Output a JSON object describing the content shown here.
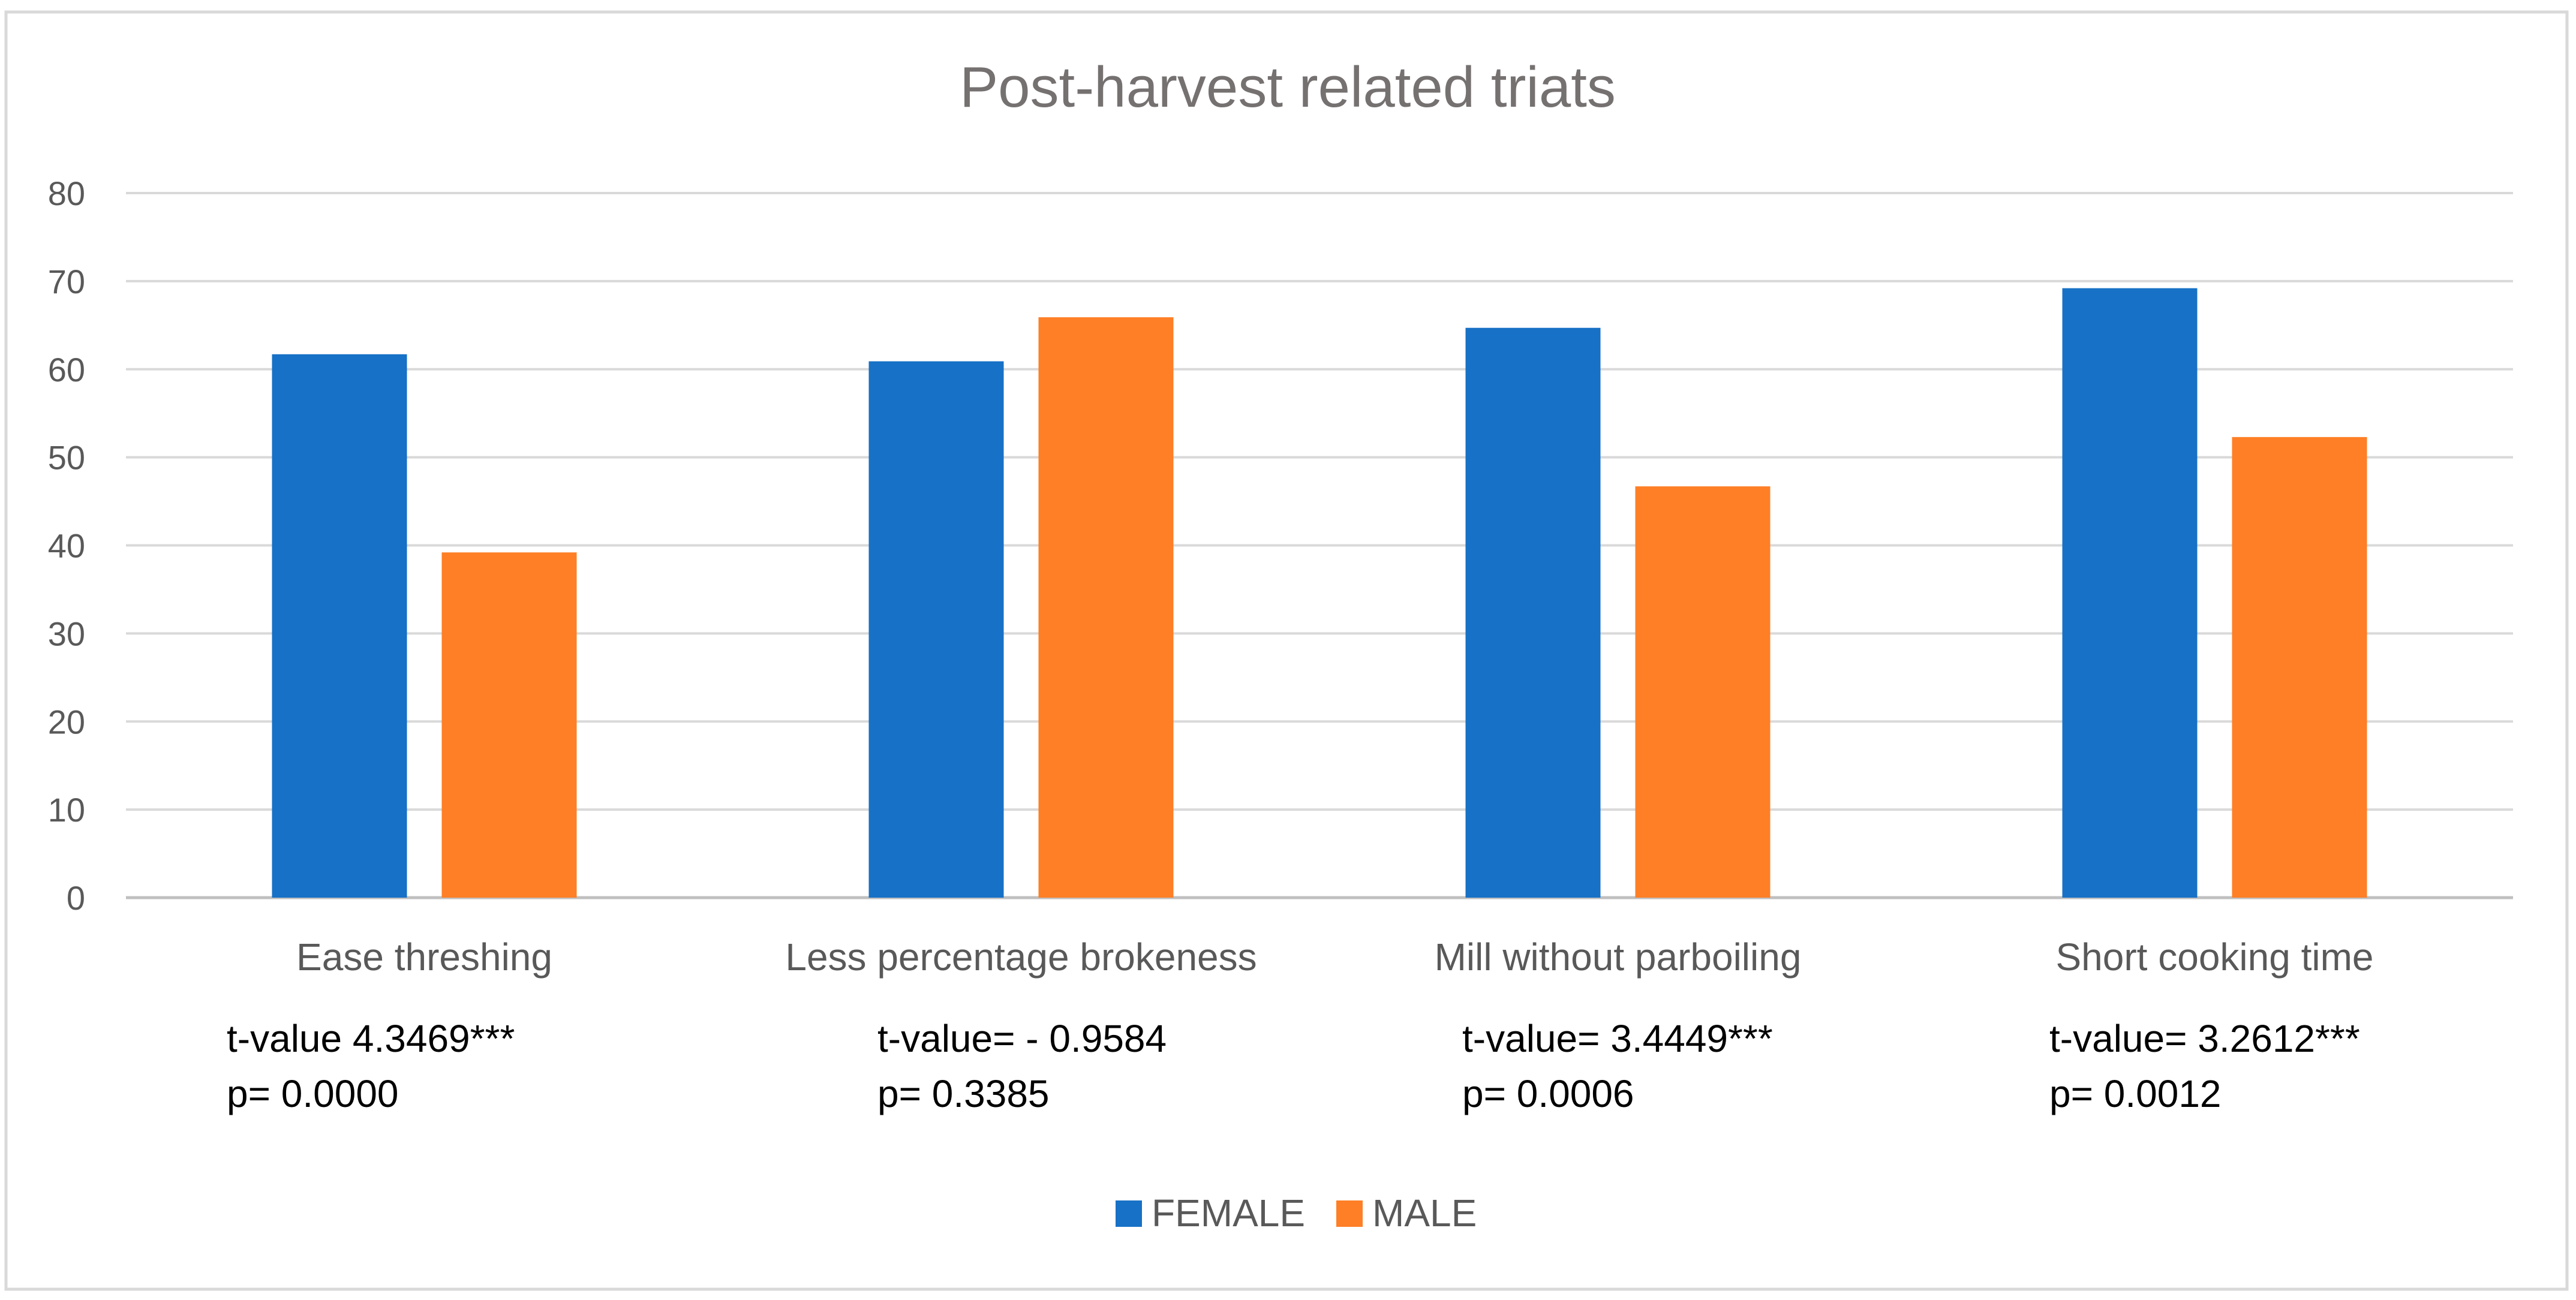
{
  "chart_data": {
    "type": "bar",
    "title": "Post-harvest related triats",
    "categories": [
      "Ease threshing",
      "Less percentage brokeness",
      "Mill without parboiling",
      "Short cooking time"
    ],
    "series": [
      {
        "name": "FEMALE",
        "color": "#1771C6",
        "values": [
          61.7,
          60.9,
          64.7,
          69.2
        ]
      },
      {
        "name": "MALE",
        "color": "#FE7F26",
        "values": [
          39.2,
          65.9,
          46.7,
          52.3
        ]
      }
    ],
    "ylim": [
      0,
      80
    ],
    "yticks": [
      0,
      10,
      20,
      30,
      40,
      50,
      60,
      70,
      80
    ],
    "grid": true,
    "legend_position": "bottom",
    "xlabel": "",
    "ylabel": "",
    "annotations": [
      {
        "t_value": "t-value 4.3469***",
        "p_value": "p= 0.0000"
      },
      {
        "t_value": "t-value= - 0.9584",
        "p_value": "p= 0.3385"
      },
      {
        "t_value": "t-value= 3.4449***",
        "p_value": "p= 0.0006"
      },
      {
        "t_value": "t-value= 3.2612***",
        "p_value": "p= 0.0012"
      }
    ]
  }
}
